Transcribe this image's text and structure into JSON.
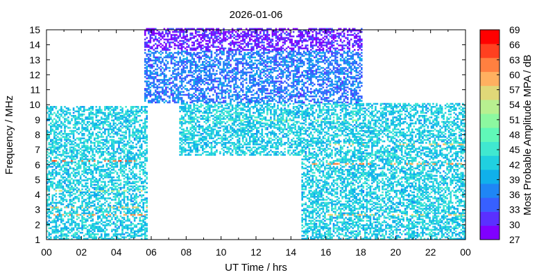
{
  "chart_data": {
    "type": "heatmap",
    "title": "2026-01-06",
    "xlabel": "UT Time / hrs",
    "ylabel": "Frequency / MHz",
    "colorbar_label": "Most Probable Amplitude MPA / dB",
    "xlim": [
      0,
      24
    ],
    "ylim": [
      1,
      15
    ],
    "x_ticks": [
      "00",
      "02",
      "04",
      "06",
      "08",
      "10",
      "12",
      "14",
      "16",
      "18",
      "20",
      "22",
      "00"
    ],
    "y_ticks": [
      "1",
      "2",
      "3",
      "4",
      "5",
      "6",
      "7",
      "8",
      "9",
      "10",
      "11",
      "12",
      "13",
      "14",
      "15"
    ],
    "colorbar_ticks": [
      "27",
      "30",
      "33",
      "36",
      "39",
      "42",
      "45",
      "48",
      "51",
      "54",
      "57",
      "60",
      "63",
      "66",
      "69"
    ],
    "colorbar_range": [
      27,
      69
    ],
    "colorbar_colors": [
      "#8000ff",
      "#5a30ff",
      "#3760ff",
      "#1f86f5",
      "#10b0eb",
      "#20d0e0",
      "#40e8d0",
      "#60f8b8",
      "#8cf8a0",
      "#b8f090",
      "#e0d878",
      "#ffb060",
      "#ff8040",
      "#ff4020",
      "#ff0000"
    ],
    "x_minor_ticks_per_major": 2,
    "grid": false,
    "regions": [
      {
        "name": "night-low-band",
        "x_range": [
          0,
          5.7
        ],
        "y_range": [
          1,
          9.8
        ],
        "typical_dB": 42
      },
      {
        "name": "day-upper-band",
        "x_range": [
          5.5,
          18
        ],
        "y_range": [
          10,
          15
        ],
        "typical_dB": 36
      },
      {
        "name": "day-top-band",
        "x_range": [
          5.5,
          18
        ],
        "y_range": [
          13.5,
          15
        ],
        "typical_dB": 30
      },
      {
        "name": "day-mid-band",
        "x_range": [
          7.5,
          15.5
        ],
        "y_range": [
          6.5,
          10
        ],
        "typical_dB": 42
      },
      {
        "name": "evening-low-band",
        "x_range": [
          14.5,
          24
        ],
        "y_range": [
          1,
          10
        ],
        "typical_dB": 42
      }
    ],
    "hot_lines": [
      {
        "freq": 6.2,
        "x_range": [
          0,
          5.5
        ],
        "dB": 63
      },
      {
        "freq": 2.6,
        "x_range": [
          0,
          8
        ],
        "dB": 60
      },
      {
        "freq": 3.1,
        "x_range": [
          0,
          7
        ],
        "dB": 57
      },
      {
        "freq": 4.2,
        "x_range": [
          0,
          7
        ],
        "dB": 54
      },
      {
        "freq": 7.3,
        "x_range": [
          16,
          24
        ],
        "dB": 57
      },
      {
        "freq": 6.0,
        "x_range": [
          15,
          24
        ],
        "dB": 60
      },
      {
        "freq": 2.6,
        "x_range": [
          16,
          24
        ],
        "dB": 57
      },
      {
        "freq": 8.9,
        "x_range": [
          5.5,
          18
        ],
        "dB": 51
      }
    ]
  }
}
